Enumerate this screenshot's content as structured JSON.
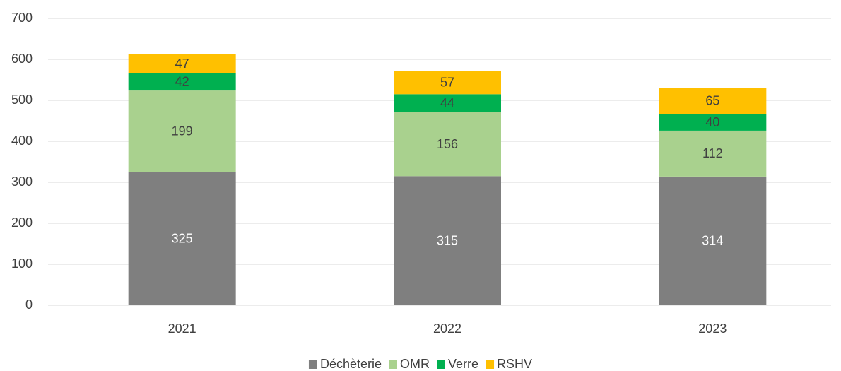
{
  "chart_data": {
    "type": "stacked_bar",
    "categories": [
      "2021",
      "2022",
      "2023"
    ],
    "series": [
      {
        "name": "Déchèterie",
        "color": "#7f7f7f",
        "label_color": "#ffffff",
        "values": [
          325,
          315,
          314
        ]
      },
      {
        "name": "OMR",
        "color": "#a9d18e",
        "label_color": "#404040",
        "values": [
          199,
          156,
          112
        ]
      },
      {
        "name": "Verre",
        "color": "#00b050",
        "label_color": "#404040",
        "values": [
          42,
          44,
          40
        ]
      },
      {
        "name": "RSHV",
        "color": "#ffc000",
        "label_color": "#404040",
        "values": [
          47,
          57,
          65
        ]
      }
    ],
    "ylim": [
      0,
      700
    ],
    "yticks": [
      0,
      100,
      200,
      300,
      400,
      500,
      600,
      700
    ],
    "grid": true,
    "legend": "bottom"
  }
}
